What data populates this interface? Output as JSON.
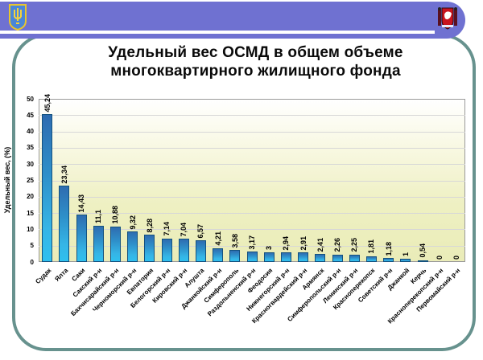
{
  "slide": {
    "title_line1": "Удельный вес ОСМД в общем объеме",
    "title_line2": "многоквартирного жилищного фонда"
  },
  "header": {
    "left_logo": "ukraine-trident-emblem",
    "right_logo": "crimea-coat-of-arms"
  },
  "colors": {
    "header_bar": "#6f71d1",
    "frame": "#67928e",
    "bar_border": "#14527f",
    "bar_top": "#2e6cb0",
    "bar_bottom": "#2fc0ee",
    "plot_bg_top": "#ffffff",
    "plot_bg_bottom": "#eaecb8",
    "gridline": "#d7d7d7"
  },
  "chart_data": {
    "type": "bar",
    "title": "Удельный вес ОСМД в общем объеме многоквартирного жилищного фонда",
    "ylabel": "Удельный вес, (%)",
    "xlabel": "",
    "ylim": [
      0,
      50
    ],
    "ytick_step": 5,
    "grid": true,
    "legend": false,
    "categories": [
      "Судак",
      "Ялта",
      "Саки",
      "Сакский р-н",
      "Бахчисарайский р-н",
      "Черноморский р-н",
      "Евпатория",
      "Белогорский р-н",
      "Кировский р-н",
      "Алушта",
      "Джанкойский р-н",
      "Симферополь",
      "Раздольненский р-н",
      "Феодосия",
      "Нижнегорский р-н",
      "Красногвардейский р-н",
      "Армянск",
      "Симферопольский р-н",
      "Ленинский р-н",
      "Красноперекопск",
      "Советский р-н",
      "Джанкой",
      "Керчь",
      "Красноперекопский р-н",
      "Первомайский р-н"
    ],
    "values": [
      45.24,
      23.34,
      14.43,
      11.1,
      10.88,
      9.32,
      8.28,
      7.14,
      7.04,
      6.57,
      4.21,
      3.58,
      3.17,
      3,
      2.94,
      2.91,
      2.41,
      2.26,
      2.25,
      1.81,
      1.18,
      1,
      0.54,
      0,
      0
    ],
    "value_labels": [
      "45,24",
      "23,34",
      "14,43",
      "11,1",
      "10,88",
      "9,32",
      "8,28",
      "7,14",
      "7,04",
      "6,57",
      "4,21",
      "3,58",
      "3,17",
      "3",
      "2,94",
      "2,91",
      "2,41",
      "2,26",
      "2,25",
      "1,81",
      "1,18",
      "1",
      "0,54",
      "0",
      "0"
    ]
  }
}
